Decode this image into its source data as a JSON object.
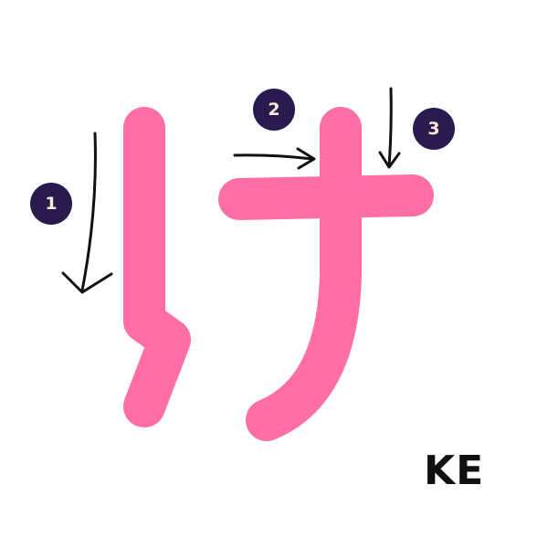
{
  "character": {
    "romaji": "KE",
    "stroke_color": "#ff6fa6",
    "arrow_color": "#111111"
  },
  "strokes": [
    {
      "order_label": "1",
      "direction": "down"
    },
    {
      "order_label": "2",
      "direction": "right"
    },
    {
      "order_label": "3",
      "direction": "down"
    }
  ],
  "badge_colors": {
    "background": "#2a1b4e",
    "text": "#fbe9d9"
  }
}
